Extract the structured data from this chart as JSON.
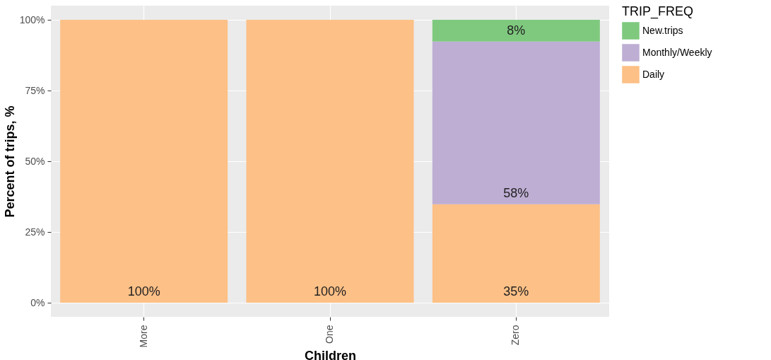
{
  "chart_data": {
    "type": "bar",
    "stacked": true,
    "xlabel": "Children",
    "ylabel": "Percent of trips, %",
    "legend_title": "TRIP_FREQ",
    "legend": "right",
    "grid": true,
    "categories": [
      "More",
      "One",
      "Zero"
    ],
    "series": [
      {
        "name": "Daily",
        "color": "#fdc086",
        "values": [
          100,
          100,
          34.8
        ],
        "value_labels": [
          "100%",
          "100%",
          "35%"
        ]
      },
      {
        "name": "Monthly/Weekly",
        "color": "#beaed4",
        "values": [
          null,
          null,
          57.5
        ],
        "value_labels": [
          null,
          null,
          "58%"
        ]
      },
      {
        "name": "New.trips",
        "color": "#7fc97f",
        "values": [
          null,
          null,
          7.7
        ],
        "value_labels": [
          null,
          null,
          "8%"
        ]
      }
    ],
    "ylim": [
      -5,
      105
    ],
    "yticks": [
      {
        "value": 0,
        "label": "0%"
      },
      {
        "value": 25,
        "label": "25%"
      },
      {
        "value": 50,
        "label": "50%"
      },
      {
        "value": 75,
        "label": "75%"
      },
      {
        "value": 100,
        "label": "100%"
      }
    ]
  }
}
